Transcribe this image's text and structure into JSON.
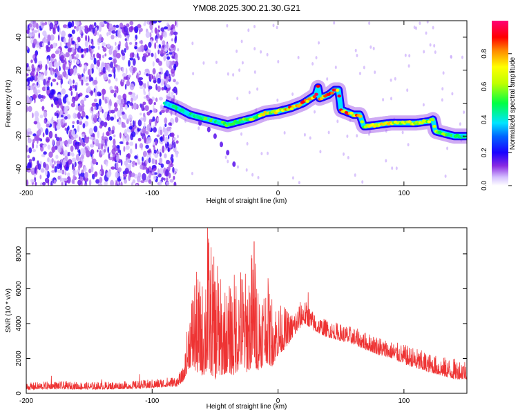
{
  "title": "YM08.2025.300.21.30.G21",
  "chart_data": [
    {
      "type": "heatmap",
      "xlabel": "Height of straight line (km)",
      "ylabel": "Frequency (Hz)",
      "xlim": [
        -200,
        150
      ],
      "ylim": [
        -50,
        50
      ],
      "xticks": [
        -200,
        -100,
        0,
        100
      ],
      "yticks": [
        -40,
        -20,
        0,
        20,
        40
      ],
      "colorbar": {
        "label": "Normalized spectral amplitude",
        "range": [
          0,
          1
        ],
        "ticks": [
          0.0,
          0.2,
          0.4,
          0.6,
          0.8
        ]
      },
      "noise_region_x": [
        -200,
        -80
      ],
      "ridge": {
        "x": [
          -90,
          -80,
          -70,
          -60,
          -50,
          -40,
          -30,
          -20,
          -10,
          0,
          10,
          20,
          30,
          32,
          33,
          40,
          45,
          48,
          50,
          60,
          65,
          68,
          70,
          80,
          90,
          100,
          110,
          120,
          123,
          125,
          135,
          140,
          150
        ],
        "y": [
          0,
          -3,
          -7,
          -9,
          -11,
          -13,
          -11,
          -9,
          -6,
          -5,
          -3,
          0,
          5,
          10,
          3,
          5,
          8,
          8,
          -4,
          -7,
          -7,
          -14,
          -14,
          -13,
          -12,
          -12,
          -12,
          -11,
          -10,
          -17,
          -19,
          -20,
          -20
        ],
        "color_level": [
          0.45,
          0.5,
          0.5,
          0.55,
          0.55,
          0.6,
          0.6,
          0.7,
          0.75,
          0.8,
          0.85,
          0.9,
          0.95,
          1.0,
          0.9,
          0.9,
          0.95,
          0.95,
          0.9,
          0.85,
          0.85,
          0.7,
          0.75,
          0.75,
          0.75,
          0.75,
          0.7,
          0.7,
          0.7,
          0.65,
          0.55,
          0.5,
          0.5
        ]
      },
      "branch": {
        "x": [
          -62,
          -55,
          -50,
          -45,
          -40,
          -35
        ],
        "y": [
          -12,
          -16,
          -20,
          -25,
          -30,
          -37
        ]
      }
    },
    {
      "type": "line",
      "xlabel": "Height of straight line (km)",
      "ylabel": "SNR (10 * v/v)",
      "xlim": [
        -200,
        150
      ],
      "ylim": [
        0,
        9500
      ],
      "xticks": [
        -200,
        -100,
        0,
        100
      ],
      "yticks": [
        0,
        2000,
        4000,
        6000,
        8000
      ],
      "color": "#ee3333",
      "envelope": {
        "x": [
          -200,
          -180,
          -150,
          -120,
          -100,
          -80,
          -75,
          -70,
          -65,
          -60,
          -55,
          -50,
          -45,
          -40,
          -35,
          -30,
          -25,
          -20,
          -15,
          -10,
          -5,
          0,
          5,
          10,
          15,
          20,
          25,
          30,
          40,
          50,
          60,
          70,
          80,
          90,
          100,
          110,
          120,
          130,
          140,
          150
        ],
        "low": [
          200,
          250,
          220,
          250,
          300,
          400,
          700,
          1500,
          1200,
          1000,
          1200,
          800,
          1000,
          1200,
          1000,
          1500,
          1200,
          1500,
          1300,
          1800,
          1500,
          2200,
          2500,
          3000,
          3500,
          4000,
          3800,
          3500,
          3200,
          3000,
          2800,
          2500,
          2200,
          2000,
          1700,
          1400,
          1200,
          1000,
          800,
          800
        ],
        "high": [
          600,
          700,
          650,
          700,
          800,
          1000,
          1500,
          5500,
          7000,
          6500,
          9500,
          7500,
          6500,
          6000,
          7000,
          7500,
          7000,
          8700,
          6500,
          6500,
          5800,
          5200,
          5000,
          4600,
          5000,
          5500,
          5000,
          4500,
          4200,
          4000,
          3800,
          3500,
          3300,
          3000,
          2800,
          2600,
          2300,
          2100,
          2000,
          2000
        ]
      },
      "spikes": [
        {
          "x": -180,
          "y": 1000
        },
        {
          "x": -140,
          "y": 800
        },
        {
          "x": -110,
          "y": 1100
        },
        {
          "x": -66,
          "y": 6200
        },
        {
          "x": -56,
          "y": 9500
        },
        {
          "x": -48,
          "y": 7300
        },
        {
          "x": -19,
          "y": 8700
        },
        {
          "x": -8,
          "y": 6600
        },
        {
          "x": 24,
          "y": 5800
        }
      ]
    }
  ]
}
